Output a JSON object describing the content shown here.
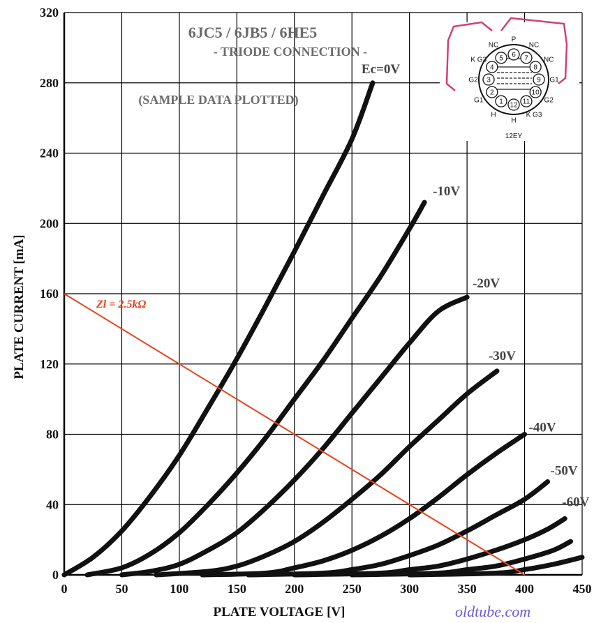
{
  "chart_data": {
    "type": "line",
    "title": "6JC5 / 6JB5 / 6HE5",
    "subtitle": "- TRIODE CONNECTION -",
    "note": "(SAMPLE DATA PLOTTED)",
    "xlabel": "PLATE VOLTAGE  [V]",
    "ylabel": "PLATE CURRENT  [mA]",
    "xlim": [
      0,
      450
    ],
    "ylim": [
      0,
      320
    ],
    "x_ticks": [
      "0",
      "50",
      "100",
      "150",
      "200",
      "250",
      "300",
      "350",
      "400",
      "450"
    ],
    "y_ticks": [
      "0",
      "40",
      "80",
      "120",
      "160",
      "200",
      "240",
      "280",
      "320"
    ],
    "grid": true,
    "series": [
      {
        "name": "Ec=0V",
        "label": "Ec=0V",
        "points": [
          [
            0,
            0
          ],
          [
            25,
            10
          ],
          [
            50,
            25
          ],
          [
            75,
            45
          ],
          [
            100,
            68
          ],
          [
            125,
            95
          ],
          [
            150,
            123
          ],
          [
            175,
            153
          ],
          [
            200,
            184
          ],
          [
            225,
            216
          ],
          [
            250,
            248
          ],
          [
            268,
            280
          ]
        ]
      },
      {
        "name": "-10V",
        "label": "-10V",
        "points": [
          [
            20,
            0
          ],
          [
            50,
            4
          ],
          [
            75,
            12
          ],
          [
            100,
            24
          ],
          [
            125,
            40
          ],
          [
            150,
            58
          ],
          [
            175,
            78
          ],
          [
            200,
            100
          ],
          [
            225,
            122
          ],
          [
            250,
            146
          ],
          [
            275,
            170
          ],
          [
            300,
            197
          ],
          [
            313,
            212
          ]
        ]
      },
      {
        "name": "-20V",
        "label": "-20V",
        "points": [
          [
            50,
            0
          ],
          [
            75,
            2
          ],
          [
            100,
            6
          ],
          [
            125,
            14
          ],
          [
            150,
            24
          ],
          [
            175,
            38
          ],
          [
            200,
            54
          ],
          [
            225,
            72
          ],
          [
            250,
            92
          ],
          [
            275,
            112
          ],
          [
            300,
            132
          ],
          [
            325,
            150
          ],
          [
            350,
            158
          ]
        ]
      },
      {
        "name": "-30V",
        "label": "-30V",
        "points": [
          [
            80,
            0
          ],
          [
            125,
            2
          ],
          [
            150,
            5
          ],
          [
            175,
            11
          ],
          [
            200,
            19
          ],
          [
            225,
            30
          ],
          [
            250,
            43
          ],
          [
            275,
            57
          ],
          [
            300,
            73
          ],
          [
            325,
            88
          ],
          [
            350,
            103
          ],
          [
            376,
            116
          ]
        ]
      },
      {
        "name": "-40V",
        "label": "-40V",
        "points": [
          [
            120,
            0
          ],
          [
            175,
            1
          ],
          [
            200,
            4
          ],
          [
            225,
            8
          ],
          [
            250,
            14
          ],
          [
            275,
            22
          ],
          [
            300,
            32
          ],
          [
            325,
            44
          ],
          [
            350,
            57
          ],
          [
            375,
            69
          ],
          [
            400,
            80
          ]
        ]
      },
      {
        "name": "-50V",
        "label": "-50V",
        "points": [
          [
            160,
            0
          ],
          [
            225,
            1
          ],
          [
            250,
            3
          ],
          [
            275,
            6
          ],
          [
            300,
            11
          ],
          [
            325,
            17
          ],
          [
            350,
            25
          ],
          [
            375,
            34
          ],
          [
            400,
            43
          ],
          [
            420,
            53
          ]
        ]
      },
      {
        "name": "-60V",
        "label": "-60V",
        "points": [
          [
            200,
            0
          ],
          [
            275,
            1
          ],
          [
            300,
            3
          ],
          [
            325,
            5
          ],
          [
            350,
            9
          ],
          [
            375,
            14
          ],
          [
            400,
            20
          ],
          [
            420,
            26
          ],
          [
            435,
            32
          ]
        ]
      },
      {
        "name": "",
        "label": "",
        "points": [
          [
            250,
            0
          ],
          [
            325,
            1
          ],
          [
            350,
            3
          ],
          [
            375,
            5
          ],
          [
            400,
            9
          ],
          [
            425,
            14
          ],
          [
            440,
            19
          ]
        ]
      },
      {
        "name": "",
        "label": "",
        "points": [
          [
            300,
            0
          ],
          [
            375,
            1
          ],
          [
            400,
            3
          ],
          [
            425,
            6
          ],
          [
            450,
            10
          ]
        ]
      }
    ],
    "load_line": {
      "label": "Zl = 2.5kΩ",
      "from": [
        0,
        160
      ],
      "to": [
        400,
        0
      ],
      "color": "#e8421c"
    }
  },
  "pinout": {
    "base_label": "12EY",
    "pins": [
      "1",
      "2",
      "3",
      "4",
      "5",
      "6",
      "7",
      "8",
      "9",
      "10",
      "11",
      "12"
    ],
    "pin_names": {
      "1": "H",
      "2": "G1",
      "3": "G2",
      "4": "K G3",
      "5": "NC",
      "6": "P",
      "7": "NC",
      "8": "NC",
      "9": "G1",
      "10": "G2",
      "11": "K G3",
      "12": "H"
    }
  },
  "watermark": "oldtube.com",
  "colors": {
    "curve": "#111111",
    "load_line": "#e8421c",
    "grid": "#000000",
    "pinout_outline": "#d0407a",
    "watermark": "#6b5bd6"
  }
}
